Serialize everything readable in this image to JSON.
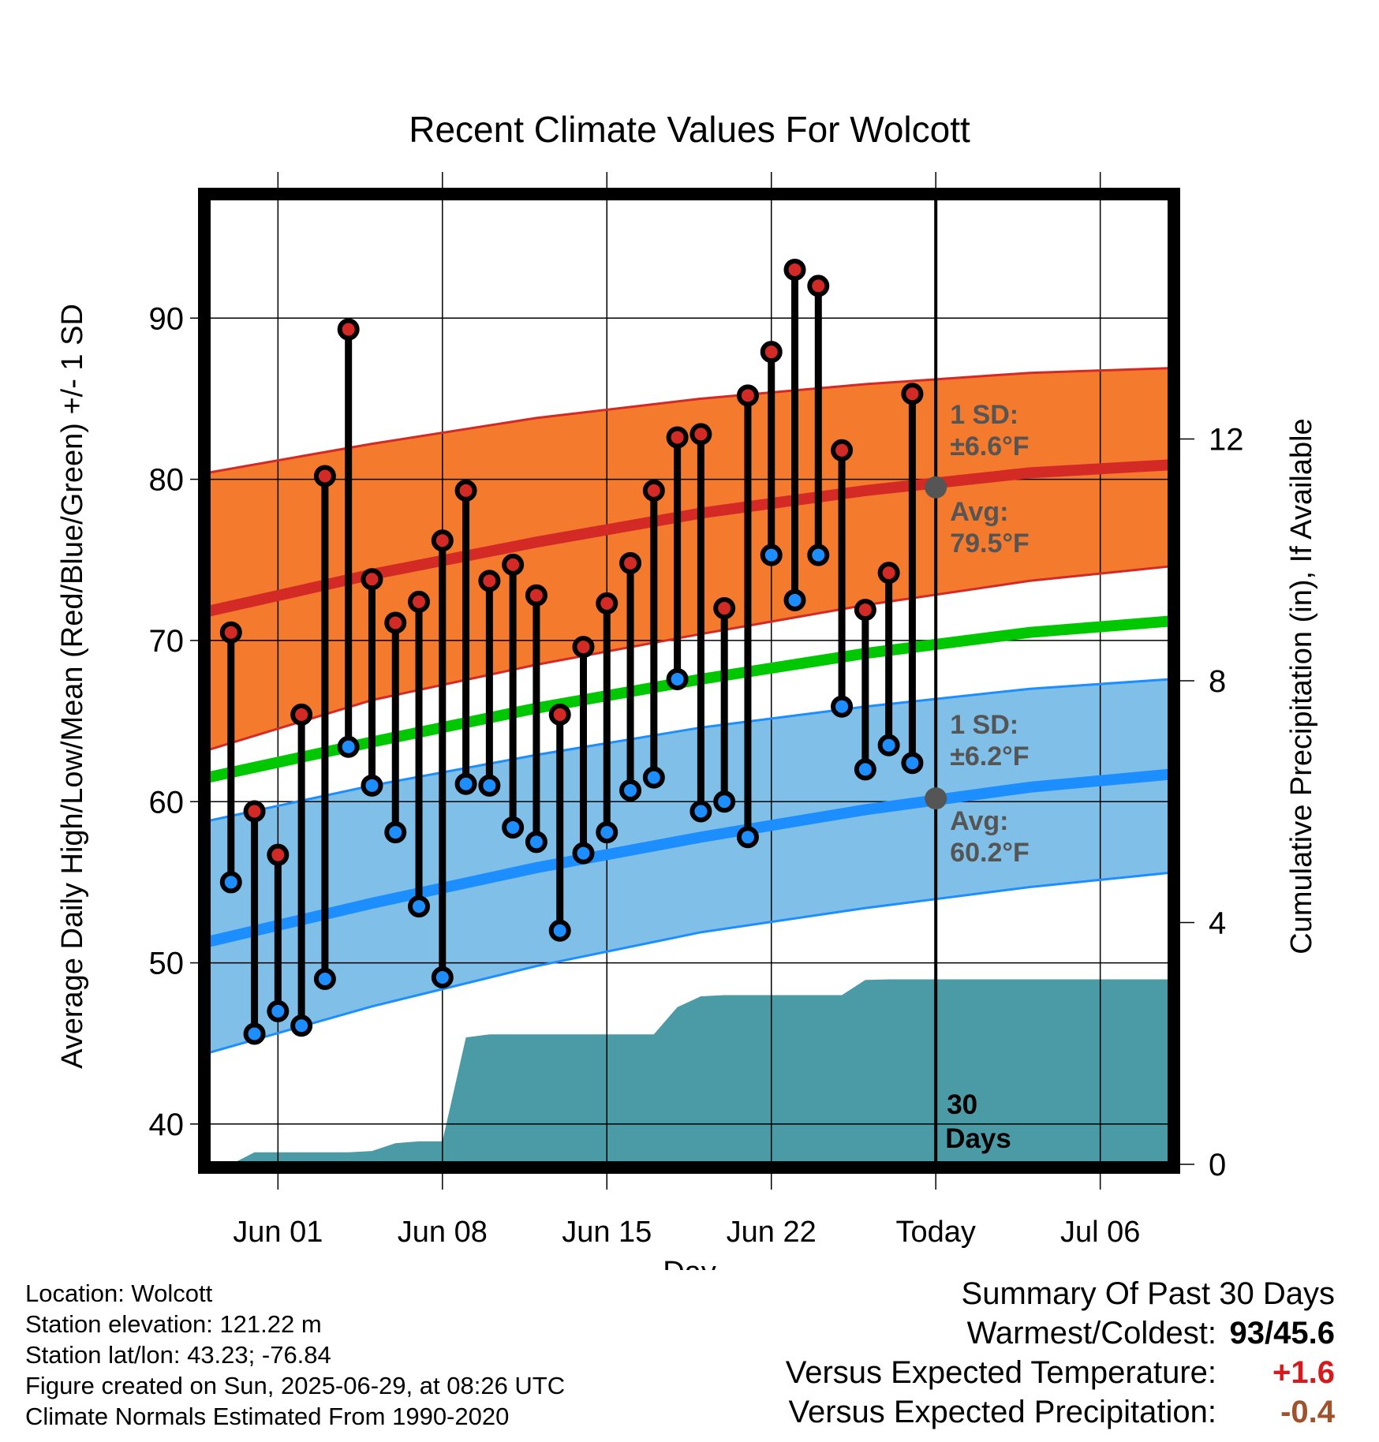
{
  "chart_data": {
    "type": "line",
    "title": "Recent Climate Values For Wolcott",
    "xlabel": "Day",
    "ylabel": "Average Daily High/Low/Mean (Red/Blue/Green) +/- 1 SD",
    "y2label": "Cumulative Precipitation (in), If Available",
    "ylim": [
      37.5,
      97.5
    ],
    "y2lim": [
      0,
      16
    ],
    "xlim": [
      "2025-05-29",
      "2025-07-09"
    ],
    "xticks": [
      {
        "date": "2025-06-01",
        "label": "Jun 01"
      },
      {
        "date": "2025-06-08",
        "label": "Jun 08"
      },
      {
        "date": "2025-06-15",
        "label": "Jun 15"
      },
      {
        "date": "2025-06-22",
        "label": "Jun 22"
      },
      {
        "date": "2025-06-29",
        "label": "Today"
      },
      {
        "date": "2025-07-06",
        "label": "Jul 06"
      }
    ],
    "yticks": [
      40,
      50,
      60,
      70,
      80,
      90
    ],
    "y2ticks": [
      0,
      4,
      8,
      12
    ],
    "grid": true,
    "today": "2025-06-29",
    "window_label": [
      "30",
      "Days"
    ],
    "normals": {
      "dates": [
        "2025-05-29",
        "2025-06-05",
        "2025-06-12",
        "2025-06-19",
        "2025-06-26",
        "2025-07-03",
        "2025-07-09"
      ],
      "high_mean": [
        71.8,
        74.1,
        76.1,
        77.9,
        79.3,
        80.4,
        80.9
      ],
      "high_upper": [
        80.4,
        82.2,
        83.8,
        85.0,
        85.9,
        86.6,
        86.9
      ],
      "high_lower": [
        63.2,
        66.3,
        68.5,
        70.4,
        72.2,
        73.7,
        74.6
      ],
      "mean": [
        61.5,
        63.7,
        65.8,
        67.6,
        69.2,
        70.5,
        71.2
      ],
      "low_mean": [
        51.3,
        53.7,
        55.9,
        57.8,
        59.5,
        60.9,
        61.7
      ],
      "low_upper": [
        58.8,
        61.0,
        62.9,
        64.6,
        65.9,
        67.0,
        67.6
      ],
      "low_lower": [
        44.4,
        47.3,
        49.8,
        51.9,
        53.4,
        54.7,
        55.6
      ]
    },
    "series": [
      {
        "name": "High",
        "dates": [
          "2025-05-30",
          "2025-05-31",
          "2025-06-01",
          "2025-06-02",
          "2025-06-03",
          "2025-06-04",
          "2025-06-05",
          "2025-06-06",
          "2025-06-07",
          "2025-06-08",
          "2025-06-09",
          "2025-06-10",
          "2025-06-11",
          "2025-06-12",
          "2025-06-13",
          "2025-06-14",
          "2025-06-15",
          "2025-06-16",
          "2025-06-17",
          "2025-06-18",
          "2025-06-19",
          "2025-06-20",
          "2025-06-21",
          "2025-06-22",
          "2025-06-23",
          "2025-06-24",
          "2025-06-25",
          "2025-06-26",
          "2025-06-27",
          "2025-06-28"
        ],
        "values": [
          70.5,
          59.4,
          56.7,
          65.4,
          80.2,
          89.3,
          73.8,
          71.1,
          72.4,
          76.2,
          79.3,
          73.7,
          74.7,
          72.8,
          65.4,
          69.6,
          72.3,
          74.8,
          79.3,
          82.6,
          82.8,
          72.0,
          85.2,
          87.9,
          93.0,
          92.0,
          81.8,
          71.9,
          74.2,
          85.3
        ]
      },
      {
        "name": "Low",
        "dates": [
          "2025-05-30",
          "2025-05-31",
          "2025-06-01",
          "2025-06-02",
          "2025-06-03",
          "2025-06-04",
          "2025-06-05",
          "2025-06-06",
          "2025-06-07",
          "2025-06-08",
          "2025-06-09",
          "2025-06-10",
          "2025-06-11",
          "2025-06-12",
          "2025-06-13",
          "2025-06-14",
          "2025-06-15",
          "2025-06-16",
          "2025-06-17",
          "2025-06-18",
          "2025-06-19",
          "2025-06-20",
          "2025-06-21",
          "2025-06-22",
          "2025-06-23",
          "2025-06-24",
          "2025-06-25",
          "2025-06-26",
          "2025-06-27",
          "2025-06-28"
        ],
        "values": [
          55.0,
          45.6,
          47.0,
          46.1,
          49.0,
          63.4,
          61.0,
          58.1,
          53.5,
          49.1,
          61.1,
          61.0,
          58.4,
          57.5,
          52.0,
          56.8,
          58.1,
          60.7,
          61.5,
          67.6,
          59.4,
          60.0,
          57.8,
          75.3,
          72.5,
          75.3,
          65.9,
          62.0,
          63.5,
          62.4
        ]
      }
    ],
    "precipitation": {
      "dates": [
        "2025-05-30",
        "2025-05-31",
        "2025-06-01",
        "2025-06-02",
        "2025-06-03",
        "2025-06-04",
        "2025-06-05",
        "2025-06-06",
        "2025-06-07",
        "2025-06-08",
        "2025-06-09",
        "2025-06-10",
        "2025-06-11",
        "2025-06-12",
        "2025-06-13",
        "2025-06-14",
        "2025-06-15",
        "2025-06-16",
        "2025-06-17",
        "2025-06-18",
        "2025-06-19",
        "2025-06-20",
        "2025-06-21",
        "2025-06-22",
        "2025-06-23",
        "2025-06-24",
        "2025-06-25",
        "2025-06-26",
        "2025-06-27",
        "2025-06-28",
        "2025-06-29",
        "2025-07-09"
      ],
      "values": [
        0.0,
        0.2,
        0.2,
        0.2,
        0.2,
        0.2,
        0.22,
        0.35,
        0.38,
        0.38,
        2.1,
        2.15,
        2.15,
        2.15,
        2.15,
        2.15,
        2.15,
        2.15,
        2.15,
        2.6,
        2.78,
        2.8,
        2.8,
        2.8,
        2.8,
        2.8,
        2.8,
        3.05,
        3.06,
        3.06,
        3.06,
        3.06
      ]
    },
    "annotations": {
      "high_sd": [
        "1 SD:",
        "±6.6°F"
      ],
      "high_avg": [
        "Avg:",
        "79.5°F"
      ],
      "high_avg_value": 79.5,
      "low_sd": [
        "1 SD:",
        "±6.2°F"
      ],
      "low_avg": [
        "Avg:",
        "60.2°F"
      ],
      "low_avg_value": 60.2
    },
    "colors": {
      "high_band": "#f47a2e",
      "high_line": "#d42a26",
      "high_band_edge": "#d42a26",
      "low_band": "#80c0e8",
      "low_line": "#1c8eff",
      "low_band_edge": "#1c8eff",
      "mean_line": "#00c800",
      "precip": "#4a9ba5",
      "high_dot": "#d42a26",
      "low_dot": "#1c8eff",
      "avg_marker": "#555555",
      "annotation_text": "#555555"
    }
  },
  "info": {
    "lines": [
      "Location: Wolcott",
      "Station elevation: 121.22 m",
      "Station lat/lon: 43.23; -76.84",
      "Figure created on Sun, 2025-06-29, at 08:26 UTC",
      "Climate Normals Estimated From 1990-2020"
    ]
  },
  "summary": {
    "title": "Summary Of Past 30 Days",
    "warmest_coldest_label": "Warmest/Coldest:",
    "warmest_coldest_value": "93/45.6",
    "temp_label": "Versus Expected Temperature:",
    "temp_value": "+1.6",
    "precip_label": "Versus Expected Precipitation:",
    "precip_value": "-0.4"
  }
}
